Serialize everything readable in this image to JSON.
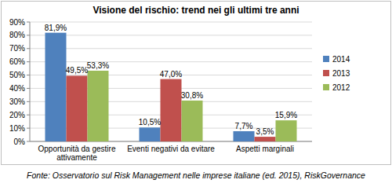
{
  "chart_data": {
    "type": "bar",
    "title": "Visione del rischio: trend nei gli ultimi tre anni",
    "source": "Fonte: Osservatorio sul Risk Management nelle imprese italiane (ed. 2015), RiskGovernance",
    "categories": [
      "Opportunità da gestire attivamente",
      "Eventi negativi da evitare",
      "Aspetti marginali"
    ],
    "series": [
      {
        "name": "2014",
        "color": "#4f81bd",
        "values": [
          81.9,
          10.5,
          7.7
        ],
        "value_labels": [
          "81,9%",
          "10,5%",
          "7,7%"
        ]
      },
      {
        "name": "2013",
        "color": "#c0504d",
        "values": [
          49.5,
          47.0,
          3.5
        ],
        "value_labels": [
          "49,5%",
          "47,0%",
          "3,5%"
        ]
      },
      {
        "name": "2012",
        "color": "#9bbb59",
        "values": [
          53.3,
          30.8,
          15.9
        ],
        "value_labels": [
          "53,3%",
          "30,8%",
          "15,9%"
        ]
      }
    ],
    "ylim": [
      0,
      90
    ],
    "yticks": [
      {
        "value": 0,
        "label": "0%"
      },
      {
        "value": 10,
        "label": "10%"
      },
      {
        "value": 20,
        "label": "20%"
      },
      {
        "value": 30,
        "label": "30%"
      },
      {
        "value": 40,
        "label": "40%"
      },
      {
        "value": 50,
        "label": "50%"
      },
      {
        "value": 60,
        "label": "60%"
      },
      {
        "value": 70,
        "label": "70%"
      },
      {
        "value": 80,
        "label": "80%"
      },
      {
        "value": 90,
        "label": "90%"
      }
    ],
    "grid": true,
    "legend": "right",
    "data_labels": true
  }
}
